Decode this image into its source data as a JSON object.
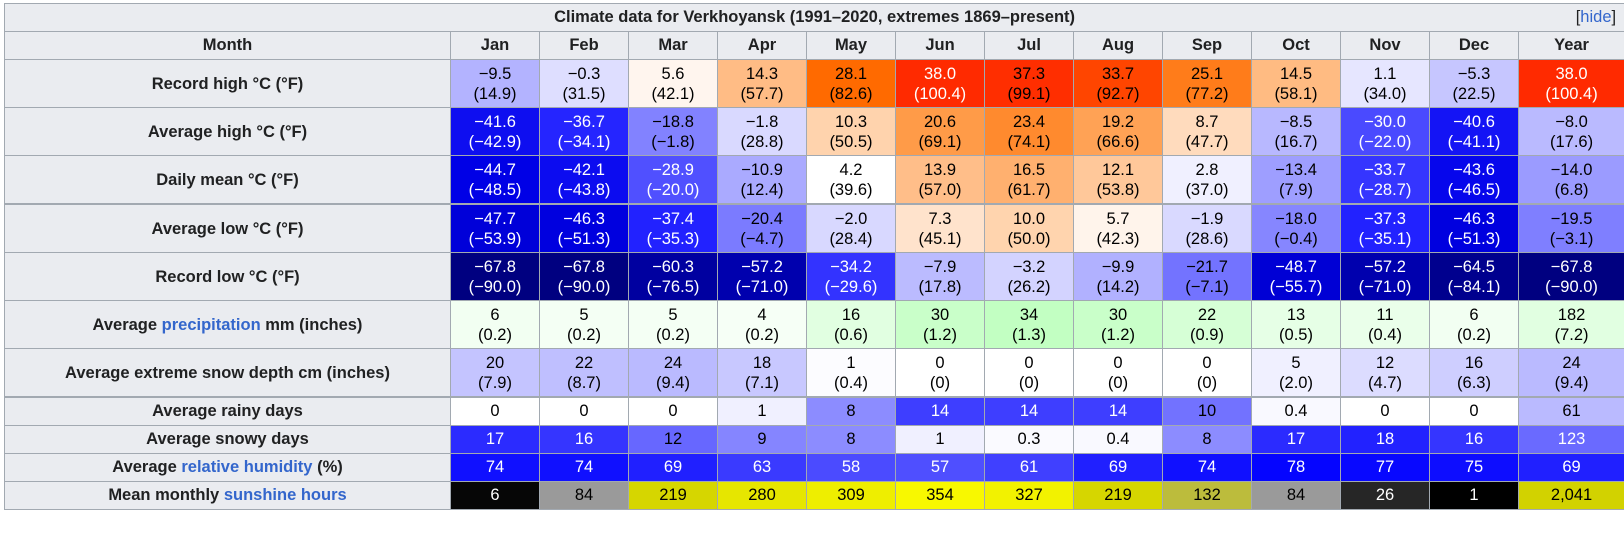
{
  "title": "Climate data for Verkhoyansk (1991–2020, extremes 1869–present)",
  "hide_label": "hide",
  "header": {
    "month_label": "Month",
    "months": [
      "Jan",
      "Feb",
      "Mar",
      "Apr",
      "May",
      "Jun",
      "Jul",
      "Aug",
      "Sep",
      "Oct",
      "Nov",
      "Dec",
      "Year"
    ]
  },
  "rows": [
    {
      "label": "Record high °C (°F)",
      "cells": [
        {
          "v": "−9.5",
          "s": "(14.9)",
          "bg": "#b3b3ff",
          "fg": "#000000"
        },
        {
          "v": "−0.3",
          "s": "(31.5)",
          "bg": "#dedeff",
          "fg": "#000000"
        },
        {
          "v": "5.6",
          "s": "(42.1)",
          "bg": "#fff5ee",
          "fg": "#000000"
        },
        {
          "v": "14.3",
          "s": "(57.7)",
          "bg": "#ffbc85",
          "fg": "#000000"
        },
        {
          "v": "28.1",
          "s": "(82.6)",
          "bg": "#ff6a00",
          "fg": "#000000"
        },
        {
          "v": "38.0",
          "s": "(100.4)",
          "bg": "#ff2a00",
          "fg": "#ffffff"
        },
        {
          "v": "37.3",
          "s": "(99.1)",
          "bg": "#ff2e00",
          "fg": "#000000"
        },
        {
          "v": "33.7",
          "s": "(92.7)",
          "bg": "#ff4500",
          "fg": "#000000"
        },
        {
          "v": "25.1",
          "s": "(77.2)",
          "bg": "#ff7c1a",
          "fg": "#000000"
        },
        {
          "v": "14.5",
          "s": "(58.1)",
          "bg": "#ffbb82",
          "fg": "#000000"
        },
        {
          "v": "1.1",
          "s": "(34.0)",
          "bg": "#e6e6ff",
          "fg": "#000000"
        },
        {
          "v": "−5.3",
          "s": "(22.5)",
          "bg": "#c6c6ff",
          "fg": "#000000"
        },
        {
          "v": "38.0",
          "s": "(100.4)",
          "bg": "#ff2a00",
          "fg": "#ffffff"
        }
      ]
    },
    {
      "label": "Average high °C (°F)",
      "cells": [
        {
          "v": "−41.6",
          "s": "(−42.9)",
          "bg": "#0e0ef0",
          "fg": "#ffffff"
        },
        {
          "v": "−36.7",
          "s": "(−34.1)",
          "bg": "#2525ff",
          "fg": "#ffffff"
        },
        {
          "v": "−18.8",
          "s": "(−1.8)",
          "bg": "#8282ff",
          "fg": "#000000"
        },
        {
          "v": "−1.8",
          "s": "(28.8)",
          "bg": "#d9d9ff",
          "fg": "#000000"
        },
        {
          "v": "10.3",
          "s": "(50.5)",
          "bg": "#ffd3ad",
          "fg": "#000000"
        },
        {
          "v": "20.6",
          "s": "(69.1)",
          "bg": "#ff9b48",
          "fg": "#000000"
        },
        {
          "v": "23.4",
          "s": "(74.1)",
          "bg": "#ff8a2e",
          "fg": "#000000"
        },
        {
          "v": "19.2",
          "s": "(66.6)",
          "bg": "#ffa255",
          "fg": "#000000"
        },
        {
          "v": "8.7",
          "s": "(47.7)",
          "bg": "#ffdbbd",
          "fg": "#000000"
        },
        {
          "v": "−8.5",
          "s": "(16.7)",
          "bg": "#b8b8ff",
          "fg": "#000000"
        },
        {
          "v": "−30.0",
          "s": "(−22.0)",
          "bg": "#4a4aff",
          "fg": "#ffffff"
        },
        {
          "v": "−40.6",
          "s": "(−41.1)",
          "bg": "#1414f5",
          "fg": "#ffffff"
        },
        {
          "v": "−8.0",
          "s": "(17.6)",
          "bg": "#babaff",
          "fg": "#000000"
        }
      ]
    },
    {
      "label": "Daily mean °C (°F)",
      "cells": [
        {
          "v": "−44.7",
          "s": "(−48.5)",
          "bg": "#0000e6",
          "fg": "#ffffff"
        },
        {
          "v": "−42.1",
          "s": "(−43.8)",
          "bg": "#0c0cf0",
          "fg": "#ffffff"
        },
        {
          "v": "−28.9",
          "s": "(−20.0)",
          "bg": "#5050ff",
          "fg": "#ffffff"
        },
        {
          "v": "−10.9",
          "s": "(12.4)",
          "bg": "#aaaaff",
          "fg": "#000000"
        },
        {
          "v": "4.2",
          "s": "(39.6)",
          "bg": "#ffffff",
          "fg": "#000000"
        },
        {
          "v": "13.9",
          "s": "(57.0)",
          "bg": "#ffbe89",
          "fg": "#000000"
        },
        {
          "v": "16.5",
          "s": "(61.7)",
          "bg": "#ffb06f",
          "fg": "#000000"
        },
        {
          "v": "12.1",
          "s": "(53.8)",
          "bg": "#ffc89a",
          "fg": "#000000"
        },
        {
          "v": "2.8",
          "s": "(37.0)",
          "bg": "#f0f0ff",
          "fg": "#000000"
        },
        {
          "v": "−13.4",
          "s": "(7.9)",
          "bg": "#9e9eff",
          "fg": "#000000"
        },
        {
          "v": "−33.7",
          "s": "(−28.7)",
          "bg": "#3535ff",
          "fg": "#ffffff"
        },
        {
          "v": "−43.6",
          "s": "(−46.5)",
          "bg": "#0606ec",
          "fg": "#ffffff"
        },
        {
          "v": "−14.0",
          "s": "(6.8)",
          "bg": "#9b9bff",
          "fg": "#000000"
        }
      ]
    },
    {
      "label": "Average low °C (°F)",
      "cells": [
        {
          "v": "−47.7",
          "s": "(−53.9)",
          "bg": "#0000d9",
          "fg": "#ffffff"
        },
        {
          "v": "−46.3",
          "s": "(−51.3)",
          "bg": "#0000df",
          "fg": "#ffffff"
        },
        {
          "v": "−37.4",
          "s": "(−35.3)",
          "bg": "#2222ff",
          "fg": "#ffffff"
        },
        {
          "v": "−20.4",
          "s": "(−4.7)",
          "bg": "#7b7bff",
          "fg": "#000000"
        },
        {
          "v": "−2.0",
          "s": "(28.4)",
          "bg": "#d8d8ff",
          "fg": "#000000"
        },
        {
          "v": "7.3",
          "s": "(45.1)",
          "bg": "#ffe3cc",
          "fg": "#000000"
        },
        {
          "v": "10.0",
          "s": "(50.0)",
          "bg": "#ffd4ae",
          "fg": "#000000"
        },
        {
          "v": "5.7",
          "s": "(42.3)",
          "bg": "#fff4eb",
          "fg": "#000000"
        },
        {
          "v": "−1.9",
          "s": "(28.6)",
          "bg": "#d9d9ff",
          "fg": "#000000"
        },
        {
          "v": "−18.0",
          "s": "(−0.4)",
          "bg": "#8686ff",
          "fg": "#000000"
        },
        {
          "v": "−37.3",
          "s": "(−35.1)",
          "bg": "#2222ff",
          "fg": "#ffffff"
        },
        {
          "v": "−46.3",
          "s": "(−51.3)",
          "bg": "#0000df",
          "fg": "#ffffff"
        },
        {
          "v": "−19.5",
          "s": "(−3.1)",
          "bg": "#7f7fff",
          "fg": "#000000"
        }
      ]
    },
    {
      "label": "Record low °C (°F)",
      "cells": [
        {
          "v": "−67.8",
          "s": "(−90.0)",
          "bg": "#000080",
          "fg": "#ffffff"
        },
        {
          "v": "−67.8",
          "s": "(−90.0)",
          "bg": "#000080",
          "fg": "#ffffff"
        },
        {
          "v": "−60.3",
          "s": "(−76.5)",
          "bg": "#0000a0",
          "fg": "#ffffff"
        },
        {
          "v": "−57.2",
          "s": "(−71.0)",
          "bg": "#0000ae",
          "fg": "#ffffff"
        },
        {
          "v": "−34.2",
          "s": "(−29.6)",
          "bg": "#3333ff",
          "fg": "#ffffff"
        },
        {
          "v": "−7.9",
          "s": "(17.8)",
          "bg": "#bbbbff",
          "fg": "#000000"
        },
        {
          "v": "−3.2",
          "s": "(26.2)",
          "bg": "#d3d3ff",
          "fg": "#000000"
        },
        {
          "v": "−9.9",
          "s": "(14.2)",
          "bg": "#b1b1ff",
          "fg": "#000000"
        },
        {
          "v": "−21.7",
          "s": "(−7.1)",
          "bg": "#7373ff",
          "fg": "#000000"
        },
        {
          "v": "−48.7",
          "s": "(−55.7)",
          "bg": "#0000d5",
          "fg": "#ffffff"
        },
        {
          "v": "−57.2",
          "s": "(−71.0)",
          "bg": "#0000ae",
          "fg": "#ffffff"
        },
        {
          "v": "−64.5",
          "s": "(−84.1)",
          "bg": "#00008e",
          "fg": "#ffffff"
        },
        {
          "v": "−67.8",
          "s": "(−90.0)",
          "bg": "#000080",
          "fg": "#ffffff"
        }
      ]
    },
    {
      "label_pre": "Average ",
      "label_link": "precipitation",
      "label_post": " mm (inches)",
      "cells": [
        {
          "v": "6",
          "s": "(0.2)",
          "bg": "#f2fff2",
          "fg": "#000000"
        },
        {
          "v": "5",
          "s": "(0.2)",
          "bg": "#f4fff4",
          "fg": "#000000"
        },
        {
          "v": "5",
          "s": "(0.2)",
          "bg": "#f4fff4",
          "fg": "#000000"
        },
        {
          "v": "4",
          "s": "(0.2)",
          "bg": "#f6fff6",
          "fg": "#000000"
        },
        {
          "v": "16",
          "s": "(0.6)",
          "bg": "#e1ffe1",
          "fg": "#000000"
        },
        {
          "v": "30",
          "s": "(1.2)",
          "bg": "#c9ffc9",
          "fg": "#000000"
        },
        {
          "v": "34",
          "s": "(1.3)",
          "bg": "#c2ffc2",
          "fg": "#000000"
        },
        {
          "v": "30",
          "s": "(1.2)",
          "bg": "#c9ffc9",
          "fg": "#000000"
        },
        {
          "v": "22",
          "s": "(0.9)",
          "bg": "#d6ffd6",
          "fg": "#000000"
        },
        {
          "v": "13",
          "s": "(0.5)",
          "bg": "#e6ffe6",
          "fg": "#000000"
        },
        {
          "v": "11",
          "s": "(0.4)",
          "bg": "#eaffea",
          "fg": "#000000"
        },
        {
          "v": "6",
          "s": "(0.2)",
          "bg": "#f2fff2",
          "fg": "#000000"
        },
        {
          "v": "182",
          "s": "(7.2)",
          "bg": "#e1ffe1",
          "fg": "#000000"
        }
      ]
    },
    {
      "label": "Average extreme snow depth cm (inches)",
      "cells": [
        {
          "v": "20",
          "s": "(7.9)",
          "bg": "#c4c4ff",
          "fg": "#000000"
        },
        {
          "v": "22",
          "s": "(8.7)",
          "bg": "#bfbfff",
          "fg": "#000000"
        },
        {
          "v": "24",
          "s": "(9.4)",
          "bg": "#babaff",
          "fg": "#000000"
        },
        {
          "v": "18",
          "s": "(7.1)",
          "bg": "#c8c8ff",
          "fg": "#000000"
        },
        {
          "v": "1",
          "s": "(0.4)",
          "bg": "#fcfcff",
          "fg": "#000000"
        },
        {
          "v": "0",
          "s": "(0)",
          "bg": "#ffffff",
          "fg": "#000000"
        },
        {
          "v": "0",
          "s": "(0)",
          "bg": "#ffffff",
          "fg": "#000000"
        },
        {
          "v": "0",
          "s": "(0)",
          "bg": "#ffffff",
          "fg": "#000000"
        },
        {
          "v": "0",
          "s": "(0)",
          "bg": "#ffffff",
          "fg": "#000000"
        },
        {
          "v": "5",
          "s": "(2.0)",
          "bg": "#f0f0ff",
          "fg": "#000000"
        },
        {
          "v": "12",
          "s": "(4.7)",
          "bg": "#dcdcff",
          "fg": "#000000"
        },
        {
          "v": "16",
          "s": "(6.3)",
          "bg": "#ceceff",
          "fg": "#000000"
        },
        {
          "v": "24",
          "s": "(9.4)",
          "bg": "#babaff",
          "fg": "#000000"
        }
      ]
    },
    {
      "label": "Average rainy days",
      "cells": [
        {
          "v": "0",
          "bg": "#ffffff",
          "fg": "#000000"
        },
        {
          "v": "0",
          "bg": "#ffffff",
          "fg": "#000000"
        },
        {
          "v": "0",
          "bg": "#ffffff",
          "fg": "#000000"
        },
        {
          "v": "1",
          "bg": "#f0f0ff",
          "fg": "#000000"
        },
        {
          "v": "8",
          "bg": "#8c8cff",
          "fg": "#000000"
        },
        {
          "v": "14",
          "bg": "#3e3eff",
          "fg": "#ffffff"
        },
        {
          "v": "14",
          "bg": "#3e3eff",
          "fg": "#ffffff"
        },
        {
          "v": "14",
          "bg": "#3e3eff",
          "fg": "#ffffff"
        },
        {
          "v": "10",
          "bg": "#7272ff",
          "fg": "#000000"
        },
        {
          "v": "0.4",
          "bg": "#f9f9ff",
          "fg": "#000000"
        },
        {
          "v": "0",
          "bg": "#ffffff",
          "fg": "#000000"
        },
        {
          "v": "0",
          "bg": "#ffffff",
          "fg": "#000000"
        },
        {
          "v": "61",
          "bg": "#babaff",
          "fg": "#000000"
        }
      ]
    },
    {
      "label": "Average snowy days",
      "cells": [
        {
          "v": "17",
          "bg": "#2b2bff",
          "fg": "#ffffff"
        },
        {
          "v": "16",
          "bg": "#3535ff",
          "fg": "#ffffff"
        },
        {
          "v": "12",
          "bg": "#6767ff",
          "fg": "#000000"
        },
        {
          "v": "9",
          "bg": "#8585ff",
          "fg": "#000000"
        },
        {
          "v": "8",
          "bg": "#8c8cff",
          "fg": "#000000"
        },
        {
          "v": "1",
          "bg": "#f0f0ff",
          "fg": "#000000"
        },
        {
          "v": "0.3",
          "bg": "#fafaff",
          "fg": "#000000"
        },
        {
          "v": "0.4",
          "bg": "#f9f9ff",
          "fg": "#000000"
        },
        {
          "v": "8",
          "bg": "#8c8cff",
          "fg": "#000000"
        },
        {
          "v": "17",
          "bg": "#2b2bff",
          "fg": "#ffffff"
        },
        {
          "v": "18",
          "bg": "#2222ff",
          "fg": "#ffffff"
        },
        {
          "v": "16",
          "bg": "#3535ff",
          "fg": "#ffffff"
        },
        {
          "v": "123",
          "bg": "#6a6aff",
          "fg": "#ffffff"
        }
      ]
    },
    {
      "label_pre": "Average ",
      "label_link": "relative humidity",
      "label_post": " (%)",
      "cells": [
        {
          "v": "74",
          "bg": "#1010ff",
          "fg": "#ffffff"
        },
        {
          "v": "74",
          "bg": "#1010ff",
          "fg": "#ffffff"
        },
        {
          "v": "69",
          "bg": "#2020ff",
          "fg": "#ffffff"
        },
        {
          "v": "63",
          "bg": "#3a3aff",
          "fg": "#ffffff"
        },
        {
          "v": "58",
          "bg": "#4b4bff",
          "fg": "#ffffff"
        },
        {
          "v": "57",
          "bg": "#4f4fff",
          "fg": "#ffffff"
        },
        {
          "v": "61",
          "bg": "#4040ff",
          "fg": "#ffffff"
        },
        {
          "v": "69",
          "bg": "#2020ff",
          "fg": "#ffffff"
        },
        {
          "v": "74",
          "bg": "#1010ff",
          "fg": "#ffffff"
        },
        {
          "v": "78",
          "bg": "#0505ff",
          "fg": "#ffffff"
        },
        {
          "v": "77",
          "bg": "#0808ff",
          "fg": "#ffffff"
        },
        {
          "v": "75",
          "bg": "#0d0dff",
          "fg": "#ffffff"
        },
        {
          "v": "69",
          "bg": "#2020ff",
          "fg": "#ffffff"
        }
      ]
    },
    {
      "label_pre": "Mean monthly ",
      "label_link": "sunshine hours",
      "label_post": "",
      "cells": [
        {
          "v": "6",
          "bg": "#060606",
          "fg": "#ffffff"
        },
        {
          "v": "84",
          "bg": "#9a9a9a",
          "fg": "#000000"
        },
        {
          "v": "219",
          "bg": "#d6d600",
          "fg": "#000000"
        },
        {
          "v": "280",
          "bg": "#e6e600",
          "fg": "#000000"
        },
        {
          "v": "309",
          "bg": "#eeee00",
          "fg": "#000000"
        },
        {
          "v": "354",
          "bg": "#f8f800",
          "fg": "#000000"
        },
        {
          "v": "327",
          "bg": "#f2f200",
          "fg": "#000000"
        },
        {
          "v": "219",
          "bg": "#d6d600",
          "fg": "#000000"
        },
        {
          "v": "132",
          "bg": "#bcbc3c",
          "fg": "#000000"
        },
        {
          "v": "84",
          "bg": "#9a9a9a",
          "fg": "#000000"
        },
        {
          "v": "26",
          "bg": "#262626",
          "fg": "#ffffff"
        },
        {
          "v": "1",
          "bg": "#000000",
          "fg": "#ffffff"
        },
        {
          "v": "2,041",
          "bg": "#d2d200",
          "fg": "#000000"
        }
      ]
    }
  ]
}
